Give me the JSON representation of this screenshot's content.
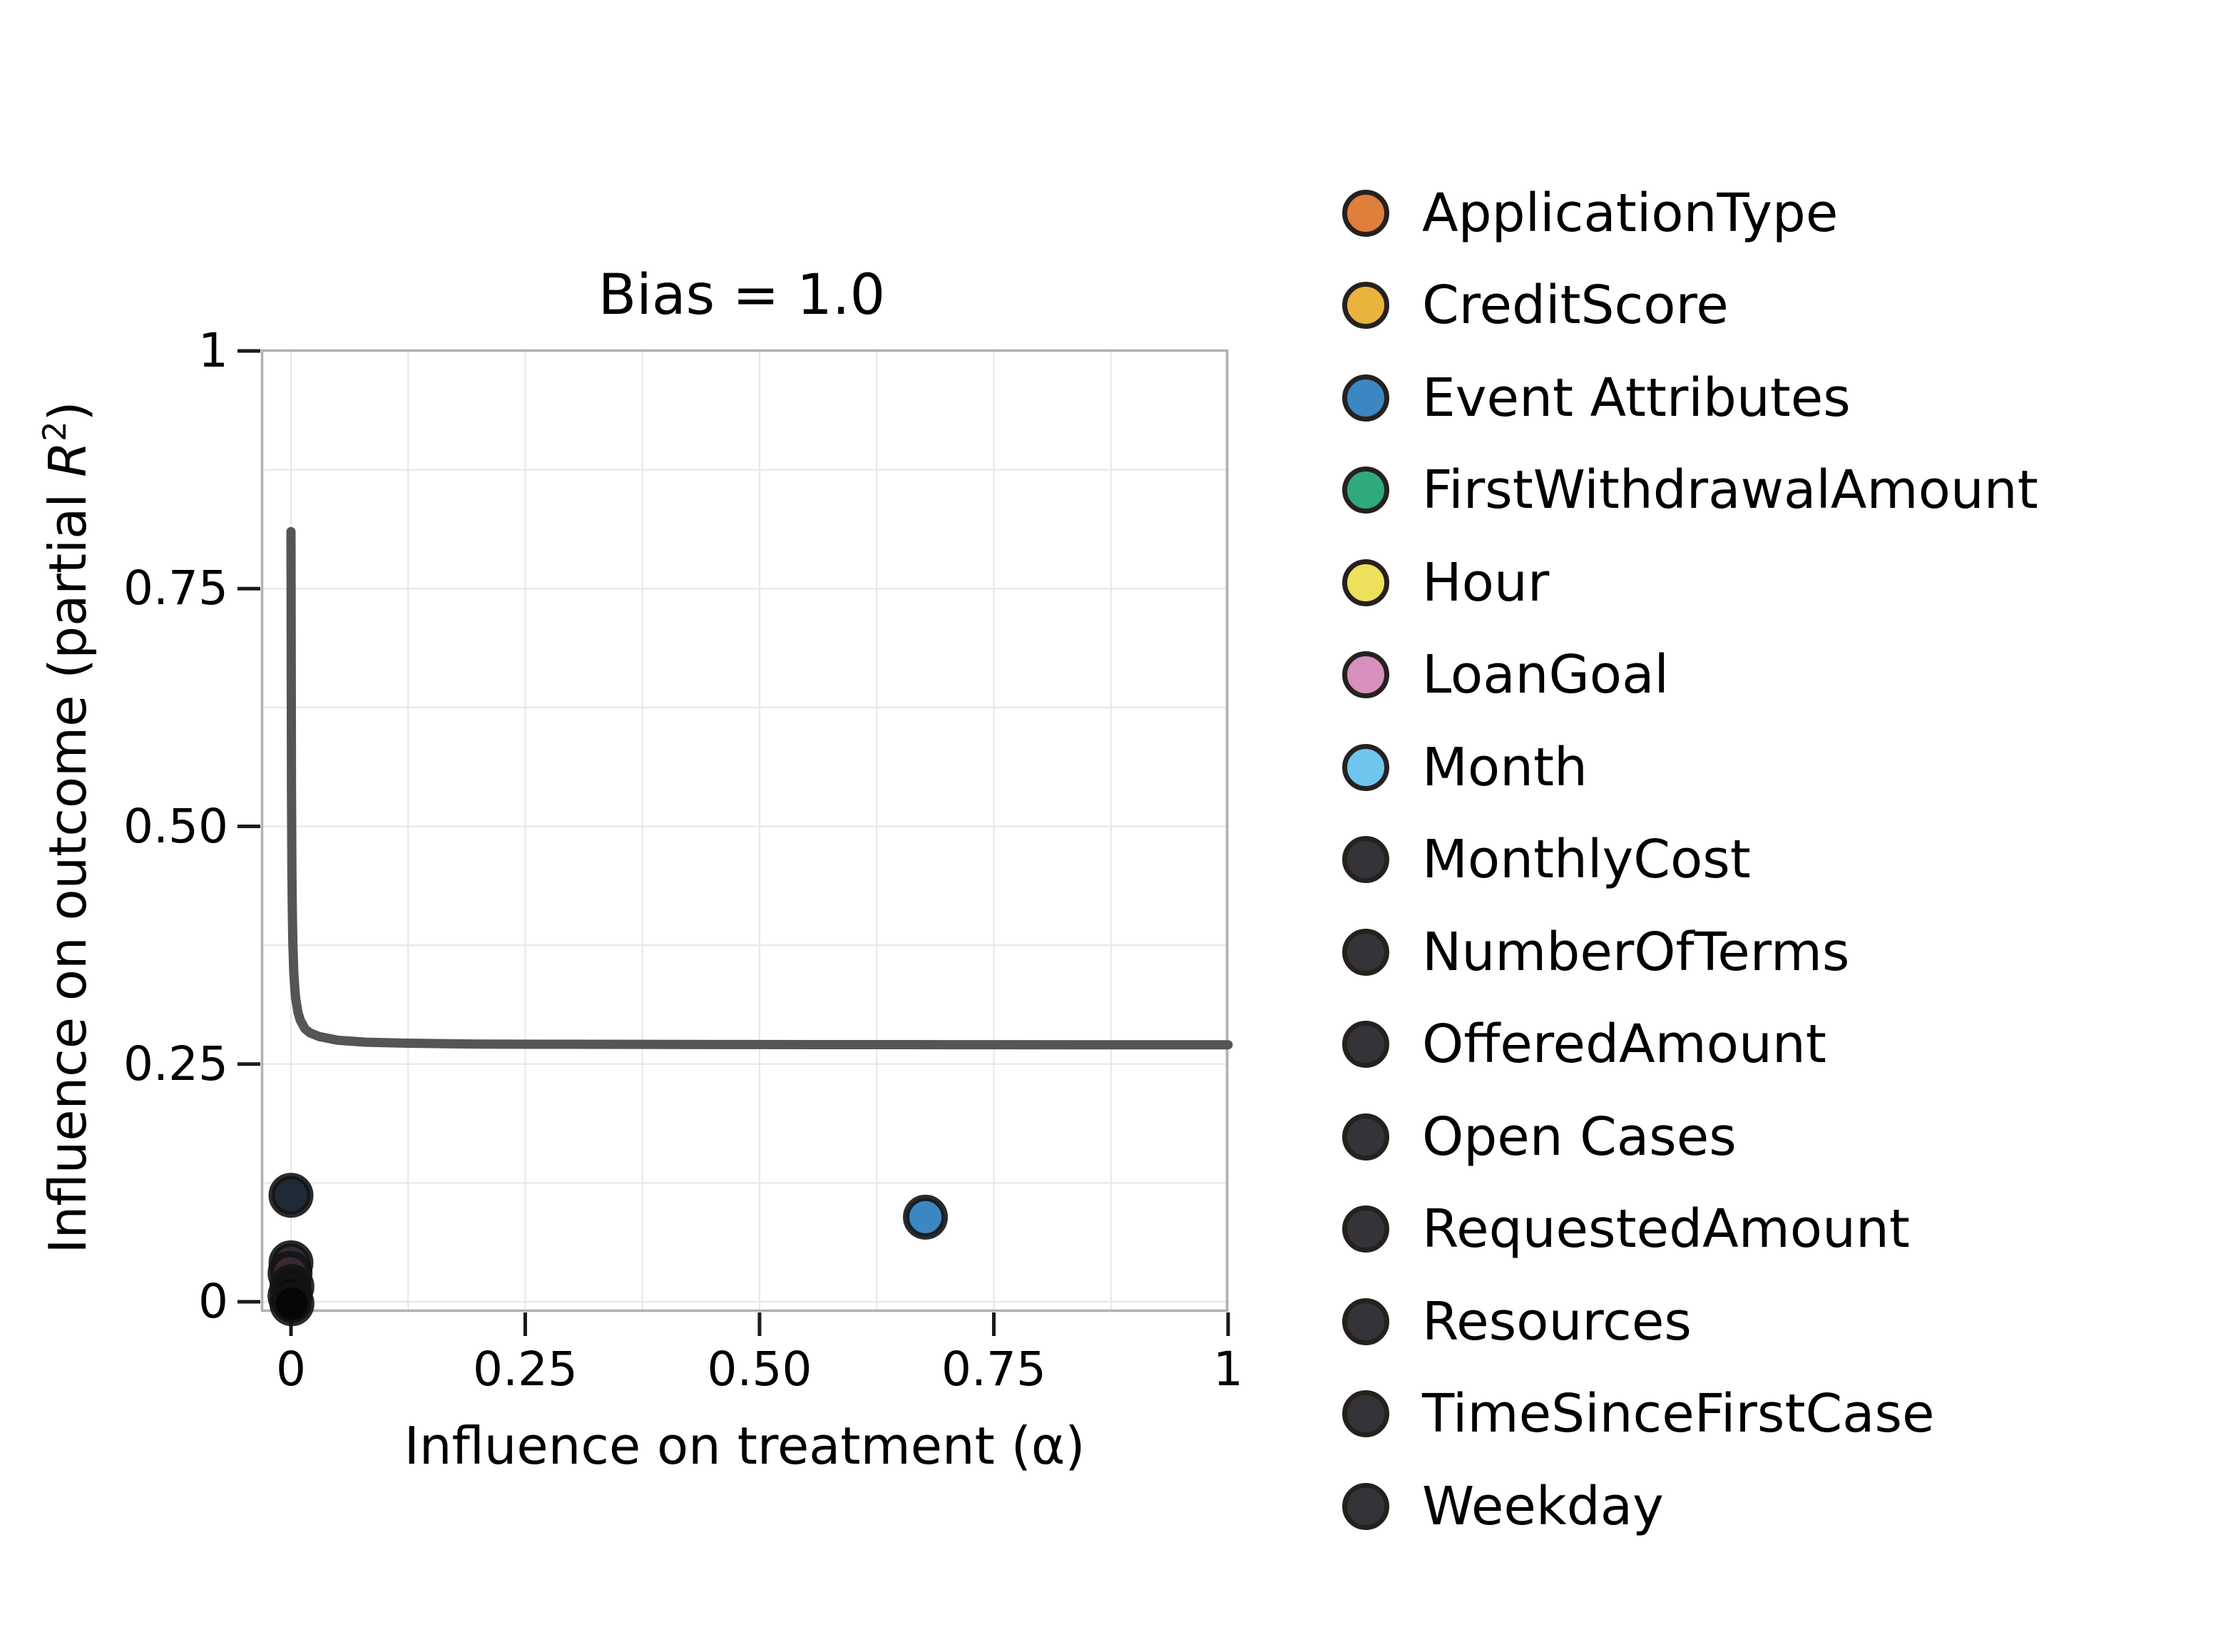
{
  "figure": {
    "title": "Bias = 1.0",
    "background": "#ffffff"
  },
  "axes": {
    "xlabel": "Influence on treatment (α)",
    "ylabel_parts": {
      "prefix": "Influence on outcome (partial ",
      "rvar": "R",
      "sup": "2",
      "suffix": ")"
    }
  },
  "chart_data": {
    "type": "scatter",
    "title": "Bias = 1.0",
    "xlabel": "Influence on treatment (α)",
    "ylabel": "Influence on outcome (partial R²)",
    "xlim": [
      -0.032,
      1.0
    ],
    "ylim": [
      -0.011,
      1.0
    ],
    "grid": {
      "step": 0.125,
      "color": "#e8e8e8",
      "on": true
    },
    "frame_color": "#b0b0b0",
    "tick_color": "#1a1a1a",
    "xticks": {
      "values": [
        0,
        0.25,
        0.5,
        0.75,
        1
      ],
      "labels": [
        "0",
        "0.25",
        "0.50",
        "0.75",
        "1"
      ]
    },
    "yticks": {
      "values": [
        1,
        0.75,
        0.5,
        0.25,
        0
      ],
      "labels": [
        "1",
        "0.75",
        "0.50",
        "0.25",
        "0"
      ]
    },
    "curve": {
      "name": "bias-contour (Bias = 1.0)",
      "color": "#555555",
      "width": 13,
      "points": [
        [
          0.0,
          0.81
        ],
        [
          0.0005,
          0.54
        ],
        [
          0.001,
          0.45
        ],
        [
          0.0015,
          0.405
        ],
        [
          0.002,
          0.378
        ],
        [
          0.003,
          0.347
        ],
        [
          0.004,
          0.33
        ],
        [
          0.005,
          0.319
        ],
        [
          0.0075,
          0.304
        ],
        [
          0.01,
          0.296
        ],
        [
          0.015,
          0.287
        ],
        [
          0.02,
          0.283
        ],
        [
          0.03,
          0.279
        ],
        [
          0.05,
          0.275
        ],
        [
          0.08,
          0.273
        ],
        [
          0.12,
          0.272
        ],
        [
          0.2,
          0.271
        ],
        [
          0.3,
          0.2708
        ],
        [
          0.5,
          0.2705
        ],
        [
          0.7,
          0.2704
        ],
        [
          0.85,
          0.2703
        ],
        [
          1.0,
          0.2703
        ]
      ]
    },
    "marker": {
      "radius": 27,
      "edge": "#141414",
      "edge_width": 9
    },
    "points": [
      {
        "label": "unlabeled dark point",
        "x": 0.0,
        "y": 0.112,
        "fill": "#1e2b36"
      },
      {
        "label": "dark cluster point",
        "x": 0.0,
        "y": 0.041,
        "fill": "#322e33"
      },
      {
        "label": "dark cluster point (purple tint)",
        "x": -0.001,
        "y": 0.03,
        "fill": "#3b2837"
      },
      {
        "label": "dark cluster point",
        "x": 0.001,
        "y": 0.016,
        "fill": "#101013"
      },
      {
        "label": "dark cluster point",
        "x": -0.001,
        "y": 0.006,
        "fill": "#08080a"
      },
      {
        "label": "dark cluster point",
        "x": 0.001,
        "y": -0.002,
        "fill": "#060608"
      },
      {
        "label": "Event Attributes",
        "x": 0.677,
        "y": 0.089,
        "fill": "#3a87c2"
      }
    ]
  },
  "legend": {
    "items": [
      {
        "label": "ApplicationType",
        "color": "#e07e3c"
      },
      {
        "label": "CreditScore",
        "color": "#eab33c"
      },
      {
        "label": "Event Attributes",
        "color": "#3a87c2"
      },
      {
        "label": "FirstWithdrawalAmount",
        "color": "#2faa7c"
      },
      {
        "label": "Hour",
        "color": "#ede15b"
      },
      {
        "label": "LoanGoal",
        "color": "#d78fbe"
      },
      {
        "label": "Month",
        "color": "#70c5ef"
      },
      {
        "label": "MonthlyCost",
        "color": "#333338"
      },
      {
        "label": "NumberOfTerms",
        "color": "#333338"
      },
      {
        "label": "OfferedAmount",
        "color": "#333338"
      },
      {
        "label": "Open Cases",
        "color": "#333338"
      },
      {
        "label": "RequestedAmount",
        "color": "#333338"
      },
      {
        "label": "Resources",
        "color": "#333338"
      },
      {
        "label": "TimeSinceFirstCase",
        "color": "#333338"
      },
      {
        "label": "Weekday",
        "color": "#333338"
      }
    ]
  }
}
